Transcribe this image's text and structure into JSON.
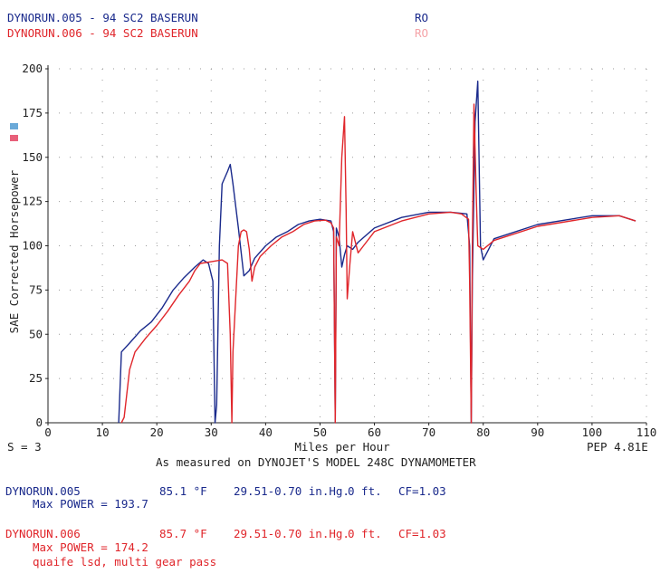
{
  "header": {
    "run1_title": "DYNORUN.005 - 94 SC2 BASERUN",
    "run1_tag": "RO",
    "run2_title": "DYNORUN.006 - 94 SC2 BASERUN",
    "run2_tag": "RO"
  },
  "colors": {
    "run1": "#1a2a8c",
    "run2": "#e0262b",
    "swatch1": "#6aa9d8",
    "swatch2": "#e8607a"
  },
  "chart_data": {
    "type": "line",
    "title": "",
    "xlabel": "Miles per Hour",
    "ylabel": "SAE Corrected Horsepower",
    "xlim": [
      0,
      110
    ],
    "ylim": [
      0,
      200
    ],
    "x_ticks": [
      0,
      10,
      20,
      30,
      40,
      50,
      60,
      70,
      80,
      90,
      100,
      110
    ],
    "y_ticks": [
      0,
      25,
      50,
      75,
      100,
      125,
      150,
      175,
      200
    ],
    "grid": true,
    "series": [
      {
        "name": "DYNORUN.005",
        "color": "#1a2a8c",
        "points": [
          [
            13.0,
            0
          ],
          [
            13.5,
            40
          ],
          [
            15,
            45
          ],
          [
            17,
            52
          ],
          [
            19,
            57
          ],
          [
            21,
            65
          ],
          [
            23,
            75
          ],
          [
            25,
            82
          ],
          [
            27,
            88
          ],
          [
            28.5,
            92
          ],
          [
            29.5,
            90
          ],
          [
            30.3,
            80
          ],
          [
            30.7,
            0
          ],
          [
            31,
            10
          ],
          [
            31.5,
            100
          ],
          [
            32,
            135
          ],
          [
            33,
            142
          ],
          [
            33.5,
            146
          ],
          [
            34,
            135
          ],
          [
            35,
            110
          ],
          [
            36,
            83
          ],
          [
            37,
            86
          ],
          [
            38,
            93
          ],
          [
            40,
            100
          ],
          [
            42,
            105
          ],
          [
            44,
            108
          ],
          [
            46,
            112
          ],
          [
            48,
            114
          ],
          [
            50,
            115
          ],
          [
            52,
            114
          ],
          [
            52.5,
            108
          ],
          [
            52.8,
            0
          ],
          [
            53,
            110
          ],
          [
            53.5,
            105
          ],
          [
            54,
            88
          ],
          [
            54.5,
            95
          ],
          [
            55,
            100
          ],
          [
            56,
            98
          ],
          [
            57,
            102
          ],
          [
            60,
            110
          ],
          [
            65,
            116
          ],
          [
            70,
            119
          ],
          [
            74,
            119
          ],
          [
            77,
            118
          ],
          [
            77.5,
            100
          ],
          [
            77.8,
            0
          ],
          [
            78,
            80
          ],
          [
            78.5,
            170
          ],
          [
            79,
            193
          ],
          [
            79.5,
            100
          ],
          [
            80,
            92
          ],
          [
            82,
            104
          ],
          [
            90,
            112
          ],
          [
            100,
            117
          ],
          [
            105,
            117
          ],
          [
            108,
            114
          ]
        ]
      },
      {
        "name": "DYNORUN.006",
        "color": "#e0262b",
        "points": [
          [
            13.5,
            0
          ],
          [
            14,
            3
          ],
          [
            15,
            30
          ],
          [
            16,
            40
          ],
          [
            18,
            48
          ],
          [
            20,
            55
          ],
          [
            22,
            63
          ],
          [
            24,
            72
          ],
          [
            26,
            80
          ],
          [
            27,
            86
          ],
          [
            28,
            90
          ],
          [
            30,
            91
          ],
          [
            32,
            92
          ],
          [
            33,
            90
          ],
          [
            33.5,
            50
          ],
          [
            33.8,
            0
          ],
          [
            34,
            40
          ],
          [
            35,
            100
          ],
          [
            35.5,
            108
          ],
          [
            36,
            109
          ],
          [
            36.5,
            108
          ],
          [
            37,
            98
          ],
          [
            37.5,
            80
          ],
          [
            38,
            88
          ],
          [
            39,
            94
          ],
          [
            41,
            100
          ],
          [
            43,
            105
          ],
          [
            45,
            108
          ],
          [
            47,
            112
          ],
          [
            49,
            114
          ],
          [
            51,
            114.5
          ],
          [
            52,
            113
          ],
          [
            52.5,
            110
          ],
          [
            52.8,
            0
          ],
          [
            53,
            105
          ],
          [
            53.5,
            100
          ],
          [
            54,
            150
          ],
          [
            54.5,
            173
          ],
          [
            54.8,
            120
          ],
          [
            55,
            70
          ],
          [
            55.5,
            90
          ],
          [
            56,
            108
          ],
          [
            57,
            96
          ],
          [
            58,
            100
          ],
          [
            60,
            108
          ],
          [
            65,
            114
          ],
          [
            70,
            118
          ],
          [
            74,
            119
          ],
          [
            76,
            118
          ],
          [
            77.3,
            115
          ],
          [
            77.5,
            80
          ],
          [
            77.8,
            0
          ],
          [
            78,
            100
          ],
          [
            78.3,
            180
          ],
          [
            78.7,
            130
          ],
          [
            79,
            100
          ],
          [
            80,
            98
          ],
          [
            82,
            103
          ],
          [
            90,
            111
          ],
          [
            100,
            116
          ],
          [
            105,
            117
          ],
          [
            108,
            114
          ]
        ]
      }
    ]
  },
  "footer": {
    "s_label": "S = 3",
    "pep": "PEP 4.81E",
    "measured": "As measured on DYNOJET'S MODEL 248C DYNAMOMETER",
    "run1": {
      "name": "DYNORUN.005",
      "temp": "85.1 °F",
      "baro": "29.51-0.70 in.Hg.",
      "alt": "0 ft.",
      "cf": "CF=1.03",
      "max": "Max POWER = 193.7"
    },
    "run2": {
      "name": "DYNORUN.006",
      "temp": "85.7 °F",
      "baro": "29.51-0.70 in.Hg.",
      "alt": "0 ft.",
      "cf": "CF=1.03",
      "max": "Max POWER = 174.2",
      "note": "quaife lsd, multi gear pass"
    }
  }
}
